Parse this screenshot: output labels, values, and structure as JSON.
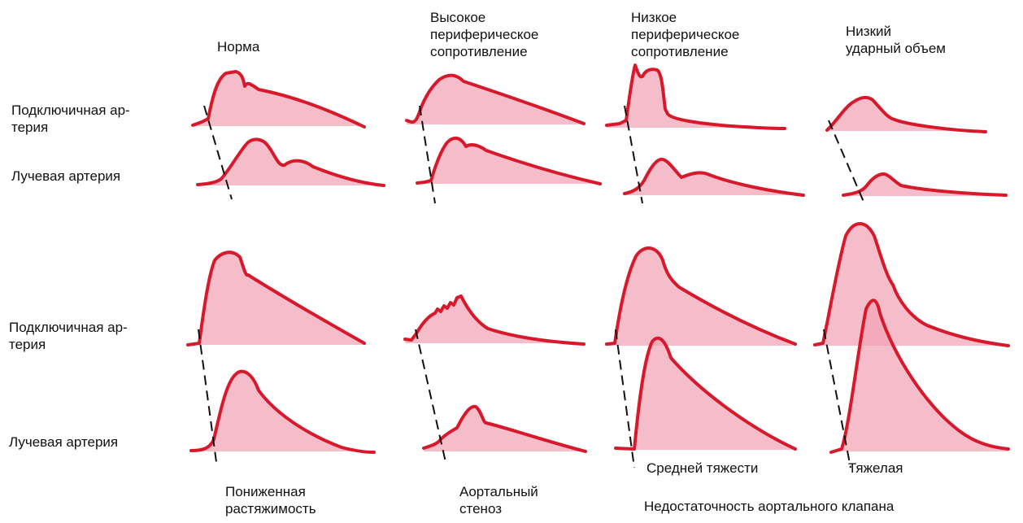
{
  "colors": {
    "wave_stroke": "#d8192c",
    "wave_fill": "#f2a5b7",
    "marker": "#111111"
  },
  "row_labels": {
    "top_subclavian": "Подключичная ар-\nтерия",
    "top_radial": "Лучевая артерия",
    "bottom_subclavian": "Подключичная ар-\nтерия",
    "bottom_radial": "Лучевая артерия"
  },
  "column_titles": {
    "normal": "Норма",
    "high_resistance": "Высокое\nпериферическое\nсопротивление",
    "low_resistance": "Низкое\nпериферическое\nсопротивление",
    "low_stroke_volume": "Низкий\nударный объем"
  },
  "bottom_labels": {
    "reduced_compliance": "Пониженная\nрастяжимость",
    "aortic_stenosis": "Аортальный\nстеноз",
    "moderate": "Средней тяжести",
    "severe": "Тяжелая",
    "aortic_insufficiency": "Недостаточность аортального клапана"
  }
}
